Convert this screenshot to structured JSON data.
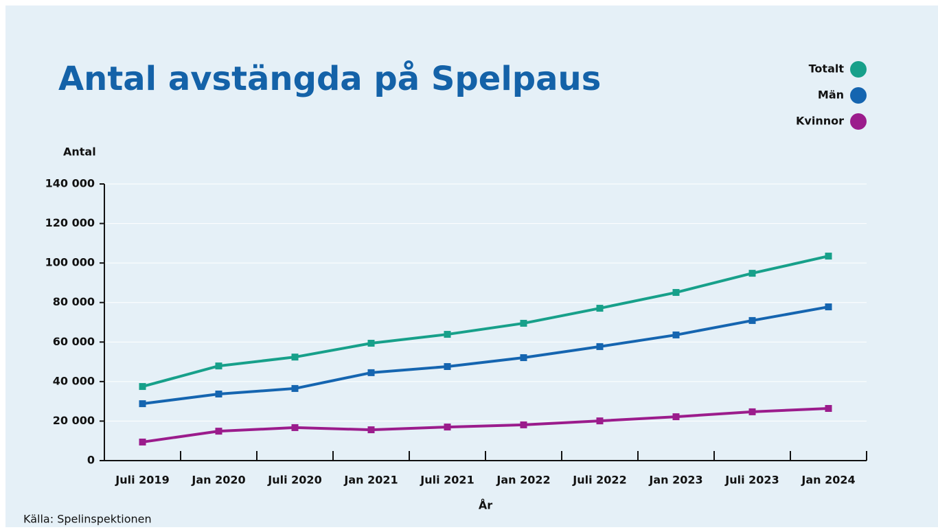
{
  "chart_data": {
    "type": "line",
    "title": "Antal avstängda på Spelpaus",
    "y_label": "Antal",
    "x_label": "År",
    "source": "Källa: Spelinspektionen",
    "categories": [
      "Juli 2019",
      "Jan 2020",
      "Juli 2020",
      "Jan 2021",
      "Juli 2021",
      "Jan 2022",
      "Juli 2022",
      "Jan 2023",
      "Juli 2023",
      "Jan 2024"
    ],
    "series": [
      {
        "name": "Totalt",
        "color": "#17a08a",
        "values": [
          37500,
          47900,
          52400,
          59400,
          63900,
          69500,
          77100,
          85100,
          94800,
          103500
        ]
      },
      {
        "name": "Män",
        "color": "#1565b0",
        "values": [
          28800,
          33700,
          36500,
          44500,
          47600,
          52100,
          57700,
          63600,
          70900,
          77800
        ]
      },
      {
        "name": "Kvinnor",
        "color": "#9b1c8c",
        "values": [
          9400,
          14900,
          16700,
          15600,
          17000,
          18100,
          20100,
          22200,
          24700,
          26400
        ]
      }
    ],
    "ylim": [
      0,
      140000
    ],
    "yticks": [
      0,
      {
        "value": 20000,
        "label": "20 000"
      },
      {
        "value": 40000,
        "label": "40 000"
      },
      {
        "value": 60000,
        "label": "60 000"
      },
      {
        "value": 80000,
        "label": "80 000"
      },
      {
        "value": 100000,
        "label": "100 000"
      },
      {
        "value": 120000,
        "label": "120 000"
      },
      {
        "value": 140000,
        "label": "140 000"
      }
    ],
    "grid": true,
    "legend": "top-right"
  }
}
